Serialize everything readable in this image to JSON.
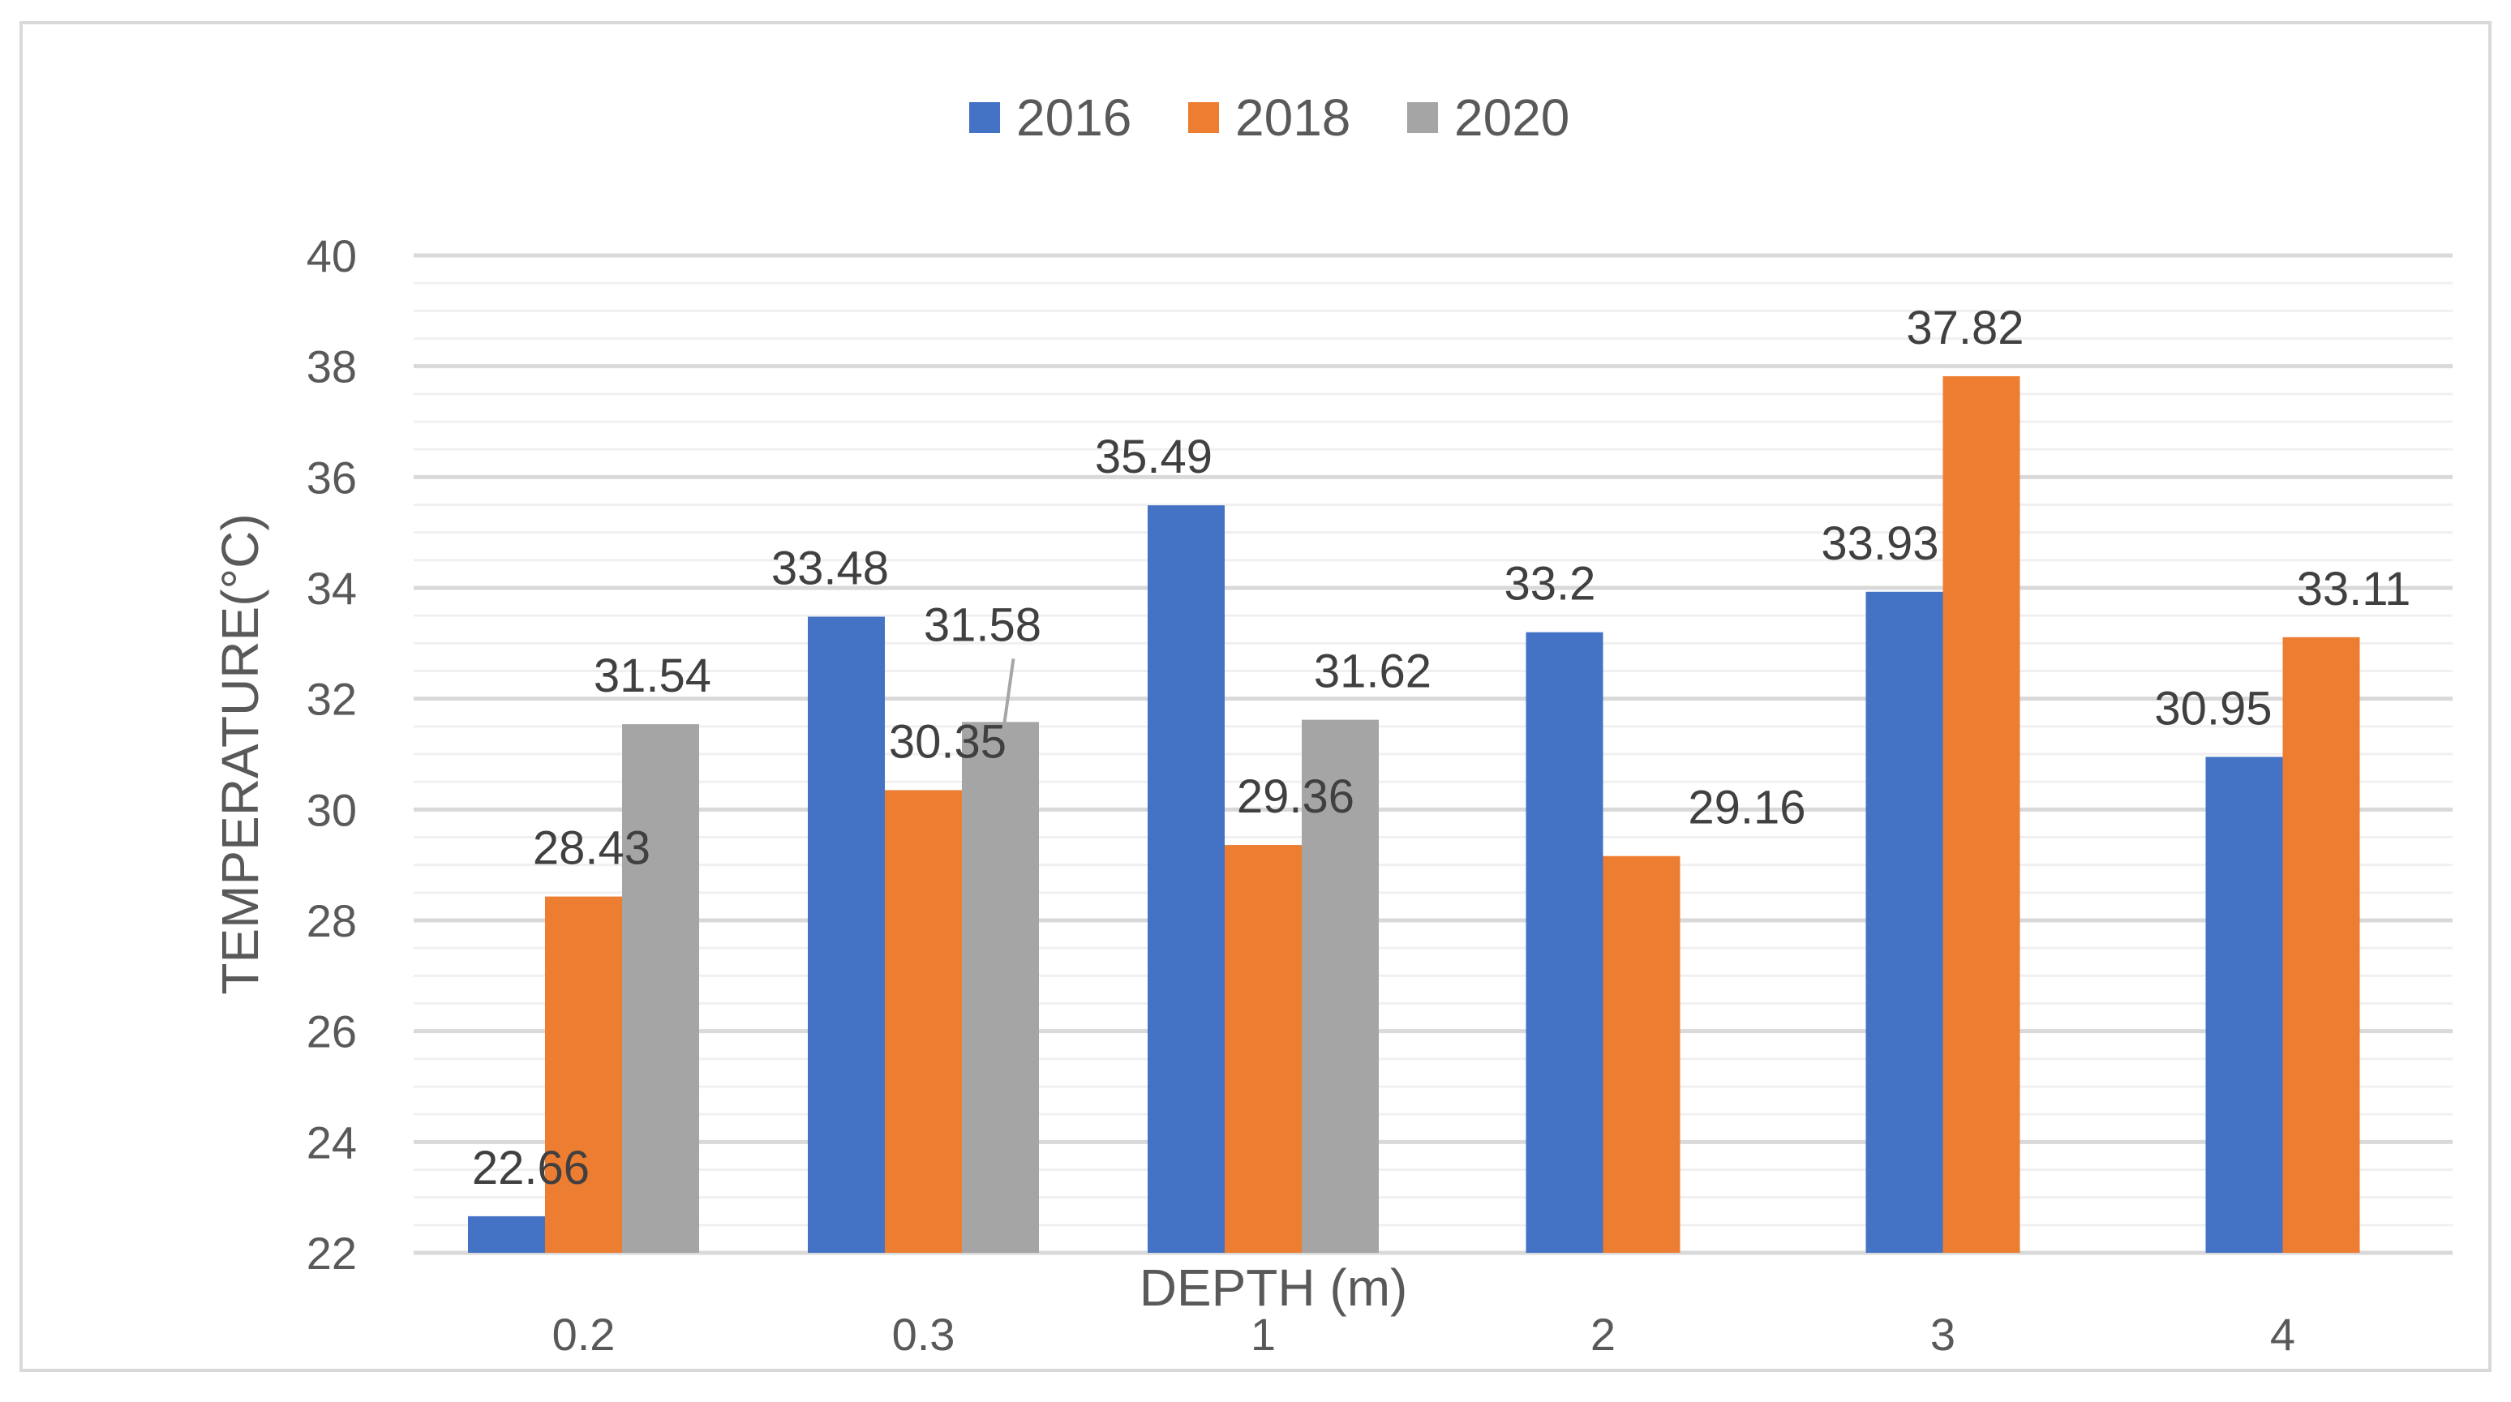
{
  "chart_data": {
    "type": "bar",
    "title": "",
    "xlabel": "DEPTH (m)",
    "ylabel": "TEMPERATURE(°C)",
    "categories": [
      "0.2",
      "0.3",
      "1",
      "2",
      "3",
      "4"
    ],
    "ylim": [
      22,
      40
    ],
    "yticks": [
      "22",
      "24",
      "26",
      "28",
      "30",
      "32",
      "34",
      "36",
      "38",
      "40"
    ],
    "legend_position": "top",
    "grid": true,
    "series": [
      {
        "name": "2016",
        "color": "#4472C4",
        "values": [
          22.66,
          33.48,
          35.49,
          33.2,
          33.93,
          30.95
        ],
        "labels": [
          "22.66",
          "33.48",
          "35.49",
          "33.2",
          "33.93",
          "30.95"
        ]
      },
      {
        "name": "2018",
        "color": "#ED7D31",
        "values": [
          28.43,
          30.35,
          29.36,
          29.16,
          37.82,
          33.11
        ],
        "labels": [
          "28.43",
          "30.35",
          "29.36",
          "29.16",
          "37.82",
          "33.11"
        ]
      },
      {
        "name": "2020",
        "color": "#A5A5A5",
        "values": [
          31.54,
          31.58,
          31.62,
          null,
          null,
          null
        ],
        "labels": [
          "31.54",
          "31.58",
          "31.62",
          "",
          "",
          ""
        ]
      }
    ]
  }
}
